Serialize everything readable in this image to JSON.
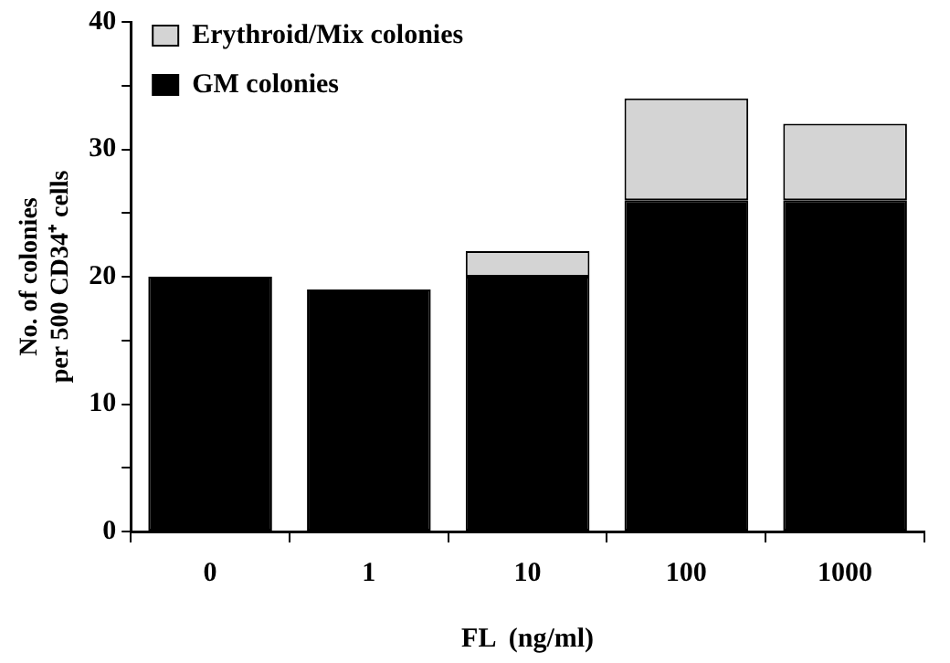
{
  "chart_data": {
    "type": "bar",
    "stacked": true,
    "xlabel": "FL  (ng/ml)",
    "ylabel": "No. of colonies\nper 500 CD34⁺ cells",
    "categories": [
      "0",
      "1",
      "10",
      "100",
      "1000"
    ],
    "series": [
      {
        "name": "GM colonies",
        "color": "#000000",
        "values": [
          20,
          19,
          20,
          26,
          26
        ]
      },
      {
        "name": "Erythroid/Mix colonies",
        "color": "#d4d4d4",
        "values": [
          0,
          0,
          2,
          8,
          6
        ]
      }
    ],
    "ylim": [
      0,
      40
    ],
    "yticks": [
      0,
      {
        "value": 5,
        "label": null
      },
      10,
      {
        "value": 15,
        "label": null
      },
      20,
      {
        "value": 25,
        "label": null
      },
      30,
      {
        "value": 35,
        "label": null
      },
      40
    ],
    "grid": false,
    "legend": "top left"
  }
}
